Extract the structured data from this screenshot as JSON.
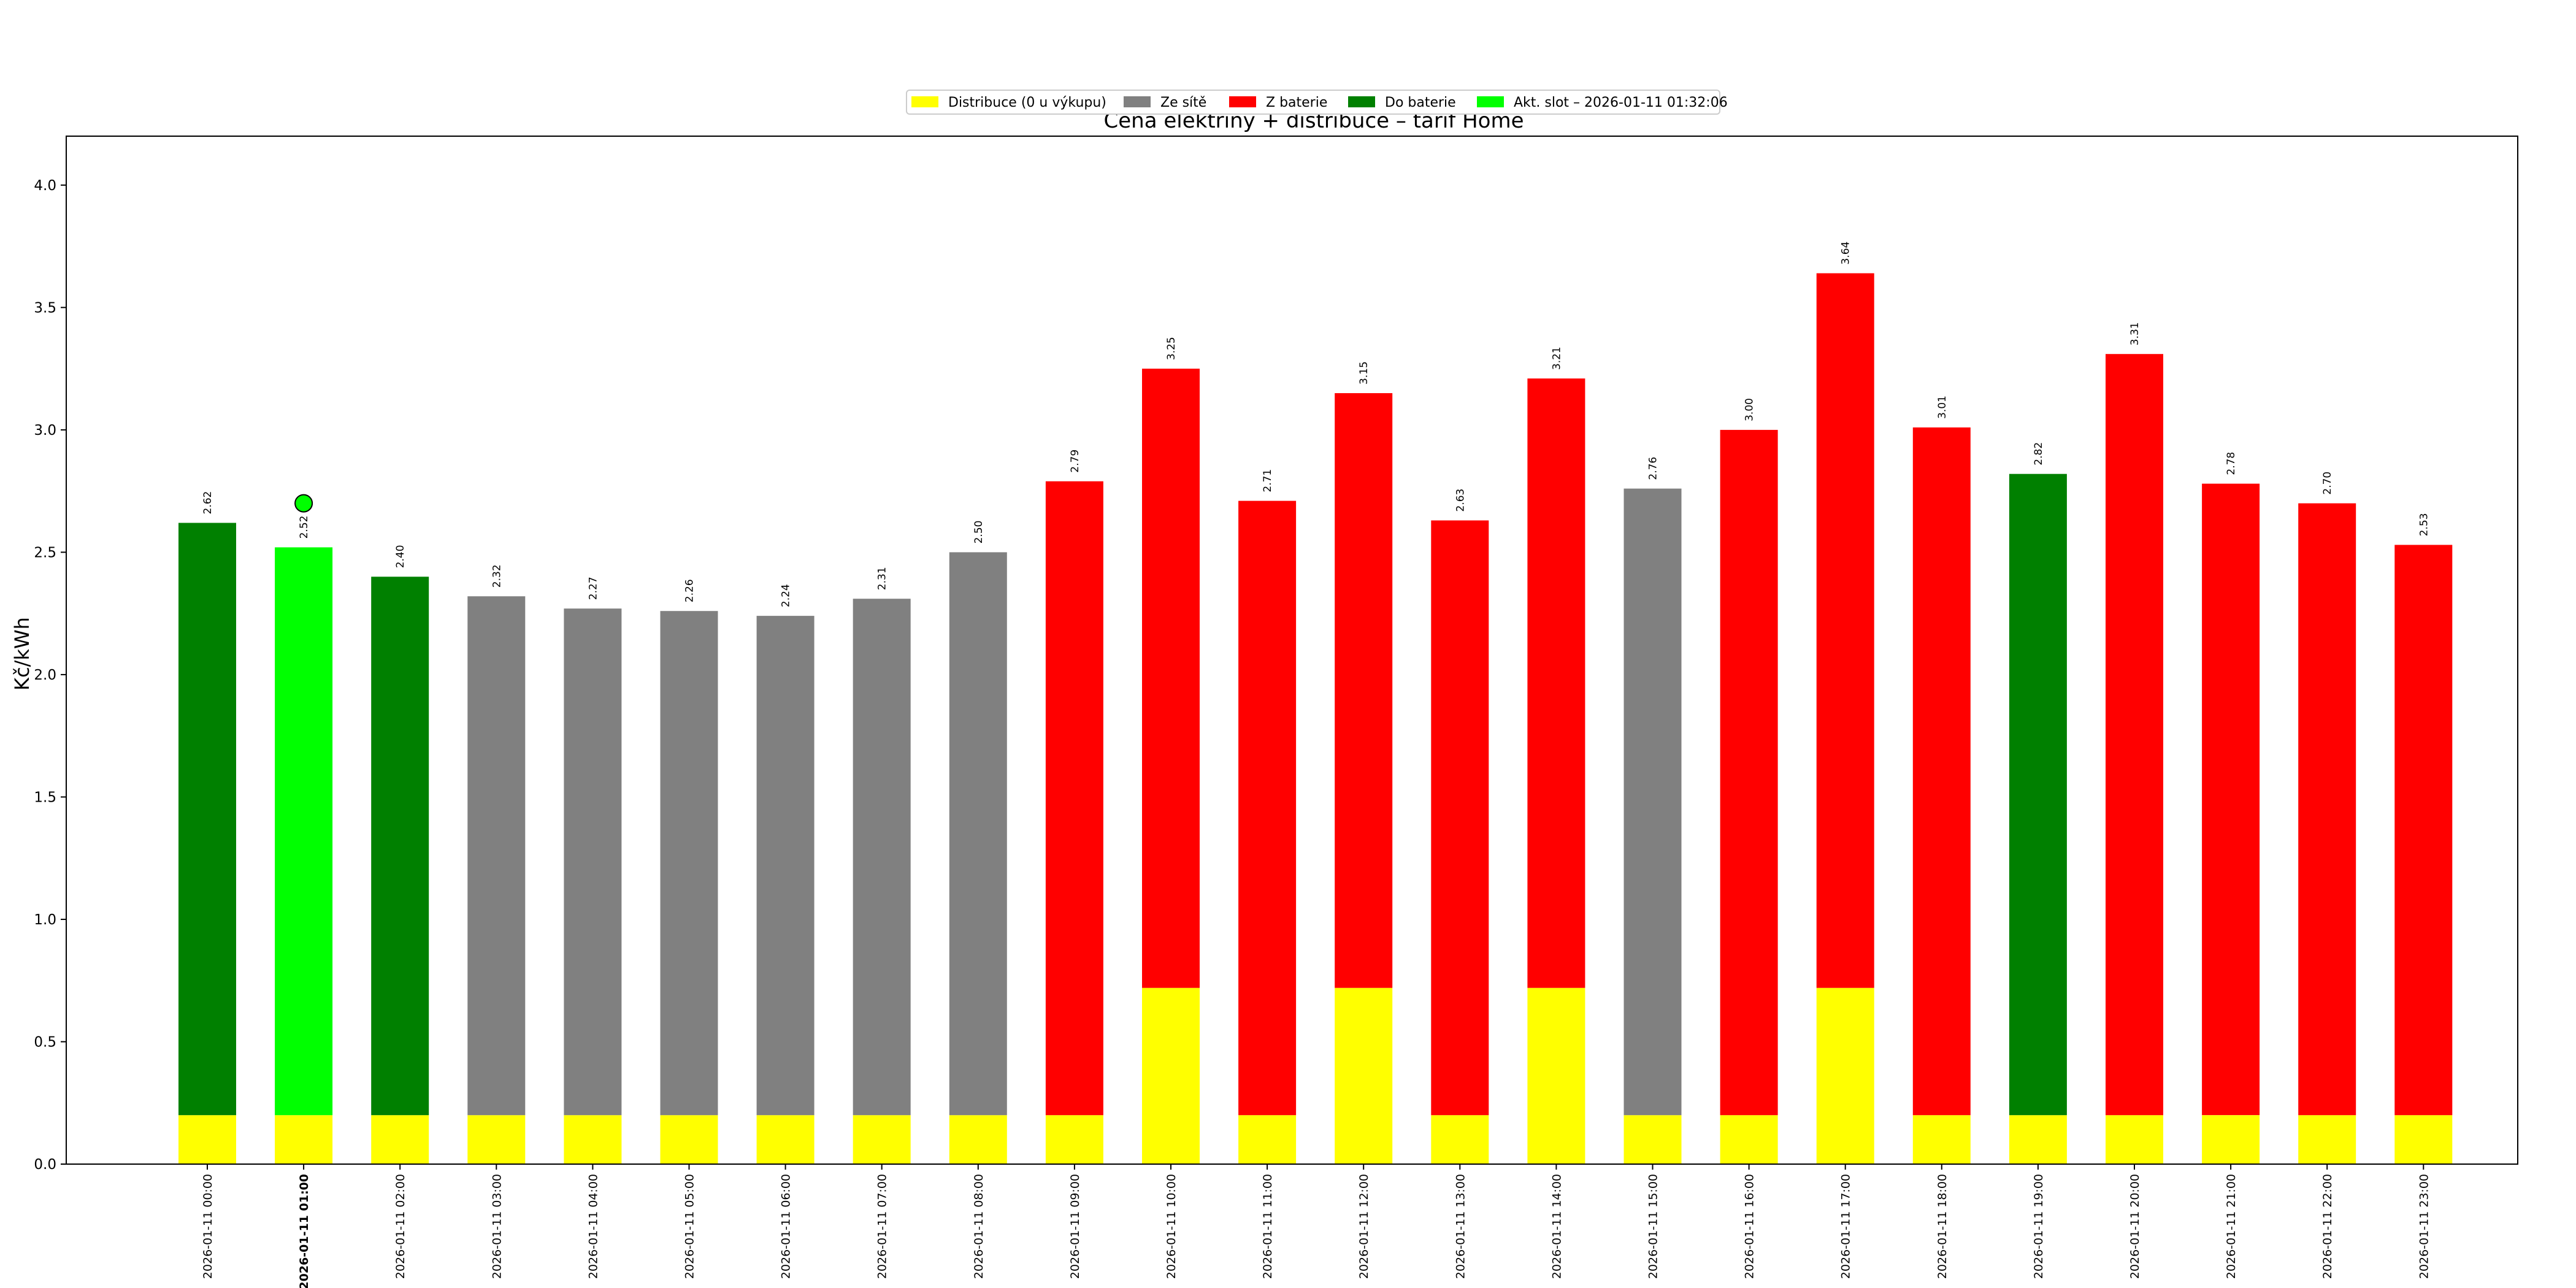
{
  "chart_data": {
    "type": "bar",
    "stacked": true,
    "title": "Cena elektřiny + distribuce – tarif Home",
    "ylabel": "Kč/kWh",
    "xlabel": "",
    "ylim": [
      0,
      4.2
    ],
    "yticks": [
      0.0,
      0.5,
      1.0,
      1.5,
      2.0,
      2.5,
      3.0,
      3.5,
      4.0
    ],
    "ytick_labels": [
      "0.0",
      "0.5",
      "1.0",
      "1.5",
      "2.0",
      "2.5",
      "3.0",
      "3.5",
      "4.0"
    ],
    "grid": false,
    "legend_position": "top-center",
    "legend": [
      {
        "label": "Distribuce (0 u výkupu)",
        "color": "#ffff00"
      },
      {
        "label": "Ze sítě",
        "color": "#808080"
      },
      {
        "label": "Z baterie",
        "color": "#ff0000"
      },
      {
        "label": "Do baterie",
        "color": "#008000"
      },
      {
        "label": "Akt. slot – 2026-01-11 01:32:06",
        "color": "#00ff00"
      }
    ],
    "categories": [
      "2026-01-11 00:00",
      "2026-01-11 01:00",
      "2026-01-11 02:00",
      "2026-01-11 03:00",
      "2026-01-11 04:00",
      "2026-01-11 05:00",
      "2026-01-11 06:00",
      "2026-01-11 07:00",
      "2026-01-11 08:00",
      "2026-01-11 09:00",
      "2026-01-11 10:00",
      "2026-01-11 11:00",
      "2026-01-11 12:00",
      "2026-01-11 13:00",
      "2026-01-11 14:00",
      "2026-01-11 15:00",
      "2026-01-11 16:00",
      "2026-01-11 17:00",
      "2026-01-11 18:00",
      "2026-01-11 19:00",
      "2026-01-11 20:00",
      "2026-01-11 21:00",
      "2026-01-11 22:00",
      "2026-01-11 23:00"
    ],
    "totals": [
      2.62,
      2.52,
      2.4,
      2.32,
      2.27,
      2.26,
      2.24,
      2.31,
      2.5,
      2.79,
      3.25,
      2.71,
      3.15,
      2.63,
      3.21,
      2.76,
      3.0,
      3.64,
      3.01,
      2.82,
      3.31,
      2.78,
      2.7,
      2.53
    ],
    "total_labels": [
      "2.62",
      "2.52",
      "2.40",
      "2.32",
      "2.27",
      "2.26",
      "2.24",
      "2.31",
      "2.50",
      "2.79",
      "3.25",
      "2.71",
      "3.15",
      "2.63",
      "3.21",
      "2.76",
      "3.00",
      "3.64",
      "3.01",
      "2.82",
      "3.31",
      "2.78",
      "2.70",
      "2.53"
    ],
    "distribution": [
      0.2,
      0.2,
      0.2,
      0.2,
      0.2,
      0.2,
      0.2,
      0.2,
      0.2,
      0.2,
      0.72,
      0.2,
      0.72,
      0.2,
      0.72,
      0.2,
      0.2,
      0.72,
      0.2,
      0.2,
      0.2,
      0.2,
      0.2,
      0.2
    ],
    "mode": [
      "Do baterie",
      "Akt. slot",
      "Do baterie",
      "Ze sítě",
      "Ze sítě",
      "Ze sítě",
      "Ze sítě",
      "Ze sítě",
      "Ze sítě",
      "Z baterie",
      "Z baterie",
      "Z baterie",
      "Z baterie",
      "Z baterie",
      "Z baterie",
      "Ze sítě",
      "Z baterie",
      "Z baterie",
      "Z baterie",
      "Do baterie",
      "Z baterie",
      "Z baterie",
      "Z baterie",
      "Z baterie"
    ],
    "mode_colors": {
      "Ze sítě": "#808080",
      "Z baterie": "#ff0000",
      "Do baterie": "#008000",
      "Akt. slot": "#00ff00"
    },
    "distribution_color": "#ffff00",
    "current_slot_index": 1,
    "current_marker": {
      "value": 2.7,
      "color": "#00ff00"
    }
  }
}
